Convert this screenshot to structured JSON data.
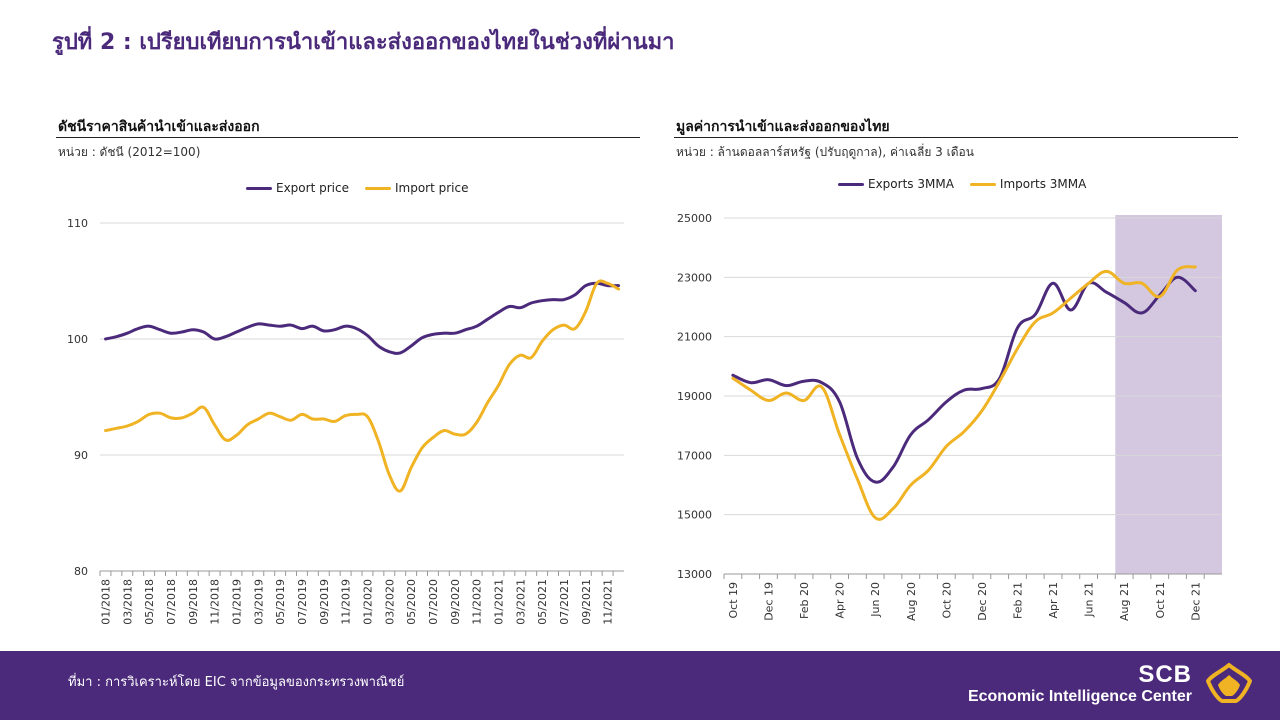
{
  "page": {
    "title": "รูปที่ 2 : เปรียบเทียบการนำเข้าและส่งออกของไทยในช่วงที่ผ่านมา"
  },
  "left_panel": {
    "title": "ดัชนีราคาสินค้านำเข้าและส่งออก",
    "unit": "หน่วย : ดัชนี (2012=100)"
  },
  "right_panel": {
    "title": "มูลค่าการนำเข้าและส่งออกของไทย",
    "unit": "หน่วย : ล้านดอลลาร์สหรัฐ (ปรับฤดูกาล), ค่าเฉลี่ย 3 เดือน"
  },
  "footer": {
    "source": "ที่มา : การวิเคราะห์โดย EIC จากข้อมูลของกระทรวงพาณิชย์",
    "brand_name": "SCB",
    "brand_sub": "Economic Intelligence Center"
  },
  "colors": {
    "brand_purple": "#4B2A7B",
    "export": "#4B2A7B",
    "import": "#F0B323",
    "forecast_shade": "#D3C8E0",
    "grid": "#d9d9d9"
  },
  "chart_data": [
    {
      "type": "line",
      "title": "ดัชนีราคาสินค้านำเข้าและส่งออก",
      "ylim": [
        80,
        110
      ],
      "yticks": [
        80,
        90,
        100,
        110
      ],
      "grid": true,
      "legend_position": "top",
      "x": [
        "01/2018",
        "02/2018",
        "03/2018",
        "04/2018",
        "05/2018",
        "06/2018",
        "07/2018",
        "08/2018",
        "09/2018",
        "10/2018",
        "11/2018",
        "12/2018",
        "01/2019",
        "02/2019",
        "03/2019",
        "04/2019",
        "05/2019",
        "06/2019",
        "07/2019",
        "08/2019",
        "09/2019",
        "10/2019",
        "11/2019",
        "12/2019",
        "01/2020",
        "02/2020",
        "03/2020",
        "04/2020",
        "05/2020",
        "06/2020",
        "07/2020",
        "08/2020",
        "09/2020",
        "10/2020",
        "11/2020",
        "12/2020",
        "01/2021",
        "02/2021",
        "03/2021",
        "04/2021",
        "05/2021",
        "06/2021",
        "07/2021",
        "08/2021",
        "09/2021",
        "10/2021",
        "11/2021",
        "12/2021"
      ],
      "xtick_labels": [
        "01/2018",
        "03/2018",
        "05/2018",
        "07/2018",
        "09/2018",
        "11/2018",
        "01/2019",
        "03/2019",
        "05/2019",
        "07/2019",
        "09/2019",
        "11/2019",
        "01/2020",
        "03/2020",
        "05/2020",
        "07/2020",
        "09/2020",
        "11/2020",
        "01/2021",
        "03/2021",
        "05/2021",
        "07/2021",
        "09/2021",
        "11/2021"
      ],
      "series": [
        {
          "name": "Export price",
          "color": "#4B2A7B",
          "values": [
            100.0,
            100.2,
            100.5,
            100.9,
            101.1,
            100.8,
            100.5,
            100.6,
            100.8,
            100.6,
            100.0,
            100.2,
            100.6,
            101.0,
            101.3,
            101.2,
            101.1,
            101.2,
            100.9,
            101.1,
            100.7,
            100.8,
            101.1,
            100.9,
            100.3,
            99.4,
            98.9,
            98.8,
            99.4,
            100.1,
            100.4,
            100.5,
            100.5,
            100.8,
            101.1,
            101.7,
            102.3,
            102.8,
            102.7,
            103.1,
            103.3,
            103.4,
            103.4,
            103.8,
            104.6,
            104.8,
            104.6,
            104.6
          ]
        },
        {
          "name": "Import price",
          "color": "#F0B323",
          "values": [
            92.1,
            92.3,
            92.5,
            92.9,
            93.5,
            93.6,
            93.2,
            93.2,
            93.6,
            94.1,
            92.6,
            91.3,
            91.7,
            92.6,
            93.1,
            93.6,
            93.3,
            93.0,
            93.5,
            93.1,
            93.1,
            92.9,
            93.4,
            93.5,
            93.3,
            91.2,
            88.3,
            86.9,
            88.9,
            90.6,
            91.5,
            92.1,
            91.8,
            91.8,
            92.8,
            94.5,
            96.0,
            97.8,
            98.6,
            98.4,
            99.8,
            100.8,
            101.2,
            100.9,
            102.4,
            104.8,
            104.8,
            104.3
          ]
        }
      ]
    },
    {
      "type": "line",
      "title": "มูลค่าการนำเข้าและส่งออกของไทย",
      "ylim": [
        13000,
        25000
      ],
      "yticks": [
        13000,
        15000,
        17000,
        19000,
        21000,
        23000,
        25000
      ],
      "grid": true,
      "legend_position": "top",
      "shaded_region": {
        "from": "Aug 21",
        "to": "Jan 22"
      },
      "x": [
        "Oct 19",
        "Nov 19",
        "Dec 19",
        "Jan 20",
        "Feb 20",
        "Mar 20",
        "Apr 20",
        "May 20",
        "Jun 20",
        "Jul 20",
        "Aug 20",
        "Sep 20",
        "Oct 20",
        "Nov 20",
        "Dec 20",
        "Jan 21",
        "Feb 21",
        "Mar 21",
        "Apr 21",
        "May 21",
        "Jun 21",
        "Jul 21",
        "Aug 21",
        "Sep 21",
        "Oct 21",
        "Nov 21",
        "Dec 21",
        "Jan 22"
      ],
      "xtick_labels": [
        "Oct 19",
        "Dec 19",
        "Feb 20",
        "Apr 20",
        "Jun 20",
        "Aug 20",
        "Oct 20",
        "Dec 20",
        "Feb 21",
        "Apr 21",
        "Jun 21",
        "Aug 21",
        "Oct 21",
        "Dec 21"
      ],
      "series": [
        {
          "name": "Exports 3MMA",
          "color": "#4B2A7B",
          "values": [
            19700,
            19450,
            19550,
            19350,
            19500,
            19450,
            18800,
            16900,
            16100,
            16600,
            17700,
            18200,
            18800,
            19200,
            19250,
            19600,
            21300,
            21750,
            22800,
            21900,
            22800,
            22500,
            22150,
            21800,
            22400,
            23000,
            22550,
            null
          ]
        },
        {
          "name": "Imports 3MMA",
          "color": "#F0B323",
          "values": [
            19600,
            19200,
            18850,
            19100,
            18850,
            19300,
            17700,
            16200,
            14900,
            15200,
            16000,
            16500,
            17300,
            17800,
            18500,
            19500,
            20600,
            21500,
            21800,
            22300,
            22800,
            23200,
            22800,
            22800,
            22350,
            23250,
            23350,
            null
          ]
        }
      ]
    }
  ]
}
